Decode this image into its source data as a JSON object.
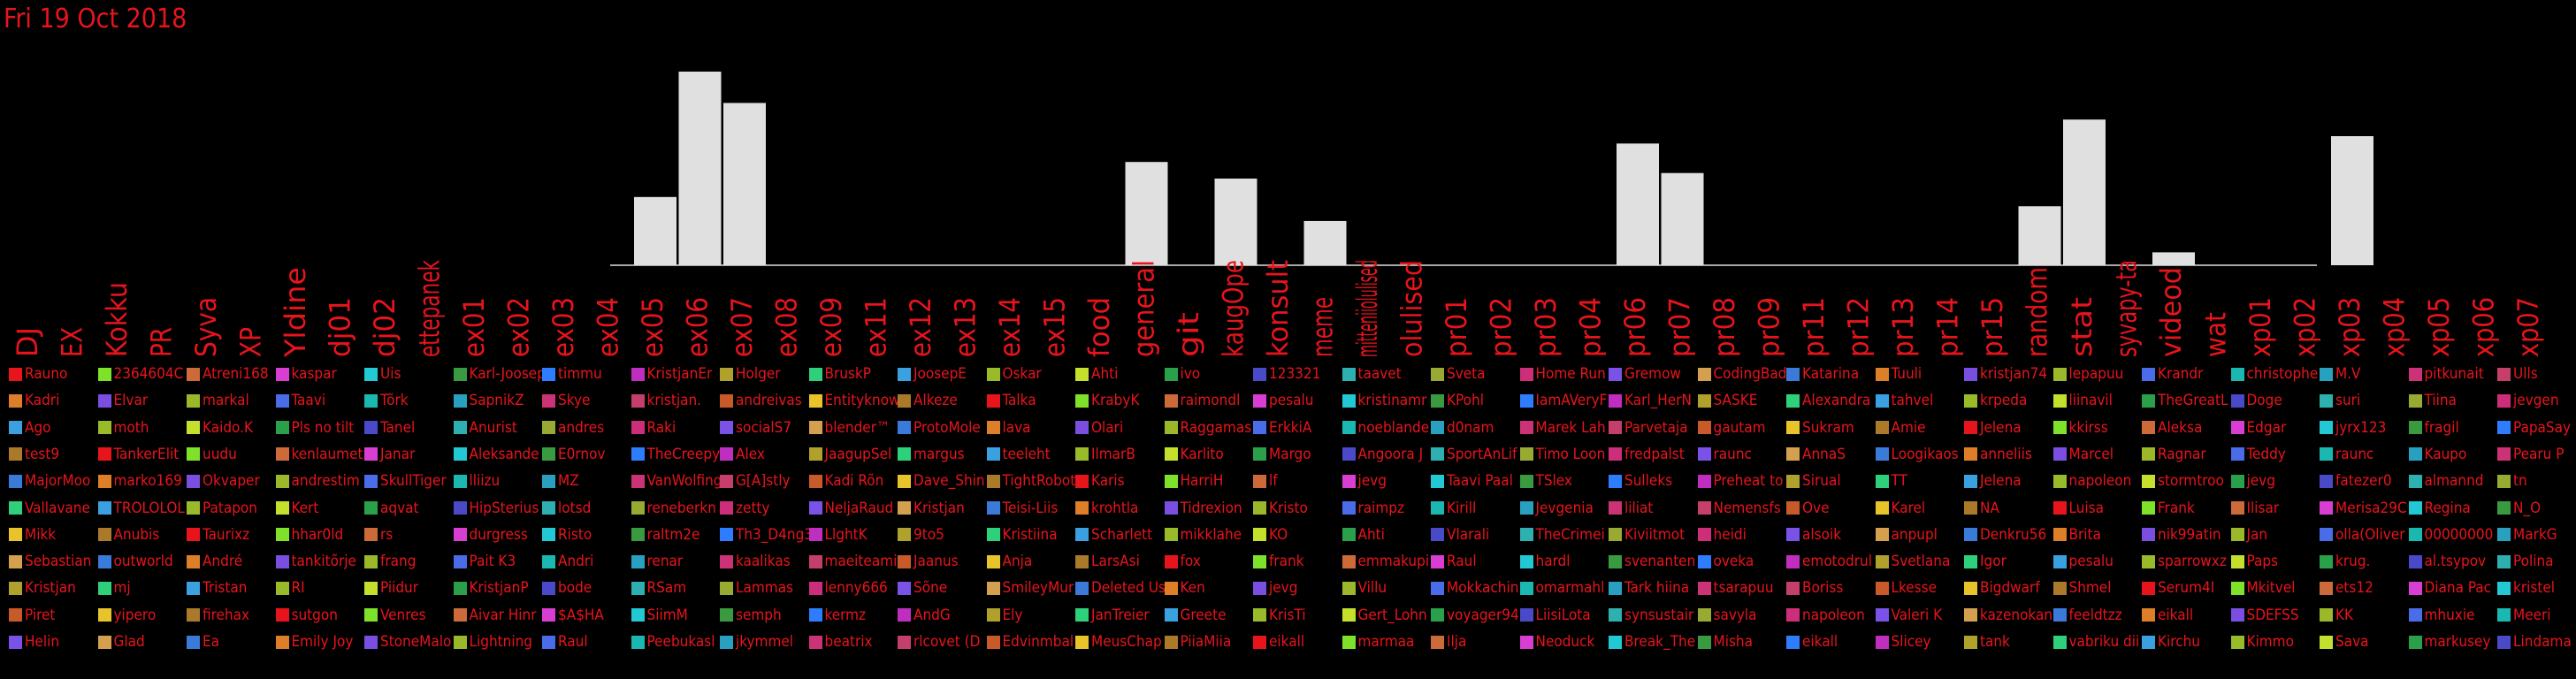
{
  "title": "Fri 19 Oct 2018",
  "chart_data": {
    "type": "bar",
    "title": "Fri 19 Oct 2018",
    "categories": [
      "DJ",
      "EX",
      "Kokku",
      "PR",
      "Syva",
      "XP",
      "Yldine",
      "dj01",
      "dj02",
      "ettepanek",
      "ex01",
      "ex02",
      "ex03",
      "ex04",
      "ex05",
      "ex06",
      "ex07",
      "ex08",
      "ex09",
      "ex11",
      "ex12",
      "ex13",
      "ex14",
      "ex15",
      "food",
      "general",
      "git",
      "kaugOpe",
      "konsult",
      "meme",
      "mitteniiolulised",
      "olulised",
      "pr01",
      "pr02",
      "pr03",
      "pr04",
      "pr06",
      "pr07",
      "pr08",
      "pr09",
      "pr11",
      "pr12",
      "pr13",
      "pr14",
      "pr15",
      "random",
      "stat",
      "syvapy-ta",
      "videod",
      "wat",
      "xp01",
      "xp02",
      "xp03",
      "xp04",
      "xp05",
      "xp06",
      "xp07"
    ],
    "values": [
      0,
      0,
      0,
      0,
      0,
      0,
      0,
      0,
      0,
      0,
      0,
      0,
      0,
      0,
      37,
      105,
      88,
      0,
      0,
      0,
      0,
      0,
      0,
      0,
      0,
      56,
      0,
      47,
      0,
      24,
      0,
      0,
      0,
      0,
      0,
      0,
      66,
      50,
      0,
      0,
      0,
      0,
      0,
      0,
      0,
      32,
      79,
      0,
      7,
      0,
      0,
      0,
      70,
      0,
      0,
      0,
      0
    ],
    "ylim": [
      0,
      115
    ],
    "grid": false,
    "legend": "bottom"
  },
  "legend": {
    "colors": [
      "#e8141c",
      "#d93ed3",
      "#2f7dff",
      "#2fd07b",
      "#c4e02c",
      "#2fb0b0",
      "#7a52e8",
      "#dd7e28",
      "#4a6ce8",
      "#cc3377",
      "#e8c42a",
      "#7ee22a",
      "#22c8d4",
      "#c02ec0",
      "#3aa0e0",
      "#2aa04a",
      "#99aa33",
      "#d4a050",
      "#7a4ee0",
      "#1ab8b0",
      "#c4406a",
      "#aa7a2a",
      "#cc6a3a",
      "#3a9a40",
      "#b0a02c",
      "#99bb2a",
      "#4a4ac8",
      "#cc2e7a",
      "#3a7ad8",
      "#9ab82a",
      "#2aa0c0",
      "#c85a2a"
    ],
    "rows": [
      [
        "Rauno",
        "2364604C",
        "Atreni168",
        "kaspar",
        "Uis",
        "Karl-Joosep",
        "timmu",
        "KristjanEr",
        "Holger",
        "BruskP",
        "JoosepE",
        "Oskar",
        "Ahti",
        "ivo",
        "123321",
        "taavet",
        "Sveta",
        "Home Run",
        "Gremow",
        "CodingBad",
        "Katarina",
        "Tuuli",
        "kristjan74",
        "lepapuu",
        "Krandr",
        "christophe",
        "M.V",
        "pitkunait",
        "Ulls"
      ],
      [
        "Kadri",
        "Elvar",
        "markal",
        "Taavi",
        "Tõrk",
        "SapnikZ",
        "Skye",
        "kristjan.",
        "andreivas",
        "Entityknow",
        "Alkeze",
        "Talka",
        "KrabyK",
        "raimondl",
        "pesalu",
        "kristinamr",
        "KPohl",
        "IamAVeryF",
        "Karl_HerN",
        "SASKE",
        "Alexandra",
        "tahvel",
        "krpeda",
        "liinavil",
        "TheGreatL",
        "Doge",
        "suri",
        "Tiina",
        "jevgen"
      ],
      [
        "Ago",
        "moth",
        "Kaido.K",
        "Pls no tilt",
        "Tanel",
        "Anurist",
        "andres",
        "Raki",
        "socialS7",
        "blender™",
        "ProtoMole",
        "lava",
        "Olari",
        "Raggamas",
        "ErkkiA",
        "noeblande",
        "d0nam",
        "Marek Lah",
        "Parvetaja",
        "gautam",
        "Sukram",
        "Amie",
        "Jelena",
        "kkirss",
        "Aleksa",
        "Edgar",
        "jyrx123",
        "fragil",
        "PapaSay"
      ],
      [
        "test9",
        "TankerElit",
        "uudu",
        "kenlaumet",
        "Janar",
        "Aleksande",
        "E0rnov",
        "TheCreepy",
        "Alex",
        "JaagupSel",
        "margus",
        "teeleht",
        "IlmarB",
        "Karlito",
        "Margo",
        "Angoora J",
        "SportAnLif",
        "Timo Loon",
        "fredpalst",
        "raunc",
        "AnnaS",
        "Loogikaos",
        "anneliis",
        "Marcel",
        "Ragnar",
        "Teddy",
        "raunc",
        "Kaupo",
        "Pearu P"
      ],
      [
        "MajorMoo",
        "marko169",
        "Okvaper",
        "andrestim",
        "SkullTiger",
        "lliizu",
        "MZ",
        "VanWolfing",
        "G[A]stly",
        "Kadi Rõn",
        "Dave_Shin",
        "TightRobot",
        "Karis",
        "HarriH",
        "lf",
        "jevg",
        "Taavi Paal",
        "TSlex",
        "Sulleks",
        "Preheat to",
        "Sirual",
        "TT",
        "Jelena",
        "napoleon",
        "stormtroo",
        "jevg",
        "fatezer0",
        "almannd",
        "tn"
      ],
      [
        "Vallavane",
        "TROLOLOL",
        "Patapon",
        "Kert",
        "aqvat",
        "HipSterius",
        "lotsd",
        "reneberkn",
        "zetty",
        "NeljaRaud",
        "Kristjan",
        "Teisi-Liis",
        "krohtla",
        "Tidrexion",
        "Kristo",
        "raimpz",
        "Kirill",
        "Jevgenia",
        "liliat",
        "Nemensfs",
        "Ove",
        "Karel",
        "NA",
        "Luisa",
        "Frank",
        "Ilisar",
        "Merisa29C",
        "Regina",
        "N_O"
      ],
      [
        "Mikk",
        "Anubis",
        "Taurixz",
        "hhar0ld",
        "rs",
        "durgress",
        "Risto",
        "raltm2e",
        "Th3_D4ng3",
        "LlghtK",
        "9to5",
        "Kristiina",
        "Scharlett",
        "mikklahe",
        "KO",
        "Ahti",
        "Vlarali",
        "TheCrimei",
        "Kiviitmot",
        "heidi",
        "alsoik",
        "anpupl",
        "Denkru56",
        "Brita",
        "nik99atin",
        "Jan",
        "olla(Oliver",
        "00000000",
        "MarkG"
      ],
      [
        "Sebastian",
        "outworld",
        "André",
        "tankitõrje",
        "frang",
        "Pait K3",
        "Andri",
        "renar",
        "kaalikas",
        "maeiteami",
        "Jaanus",
        "Anja",
        "LarsAsi",
        "fox",
        "frank",
        "emmakupi",
        "Raul",
        "hardl",
        "svenanten",
        "oveka",
        "emotodrul",
        "Svetlana",
        "Igor",
        "pesalu",
        "sparrowxz",
        "Paps",
        "krug.",
        "al.tsypov",
        "Polina"
      ],
      [
        "Kristjan",
        "mj",
        "Tristan",
        "RI",
        "Piidur",
        "KristjanP",
        "bode",
        "RSam",
        "Lammas",
        "lenny666",
        "Sõne",
        "SmileyMur",
        "Deleted Us",
        "Ken",
        "jevg",
        "Villu",
        "Mokkachin",
        "omarmahl",
        "Tark hiina",
        "tsarapuu",
        "Boriss",
        "Lkesse",
        "Bigdwarf",
        "Shmel",
        "Serum4I",
        "Mkitvel",
        "ets12",
        "Diana Pac",
        "kristel"
      ],
      [
        "Piret",
        "yipero",
        "firehax",
        "sutgon",
        "Venres",
        "Aivar Hinr",
        "$A$HA",
        "SiimM",
        "semph",
        "kermz",
        "AndG",
        "Ely",
        "JanTreier",
        "Greete",
        "KrisTi",
        "Gert_Lohn",
        "voyager94",
        "LiisiLota",
        "synsustair",
        "savyla",
        "napoleon",
        "Valeri K",
        "kazenokan",
        "feeldtzz",
        "eikall",
        "SDEFSS",
        "KK",
        "mhuxie",
        "Meeri"
      ],
      [
        "Helin",
        "Glad",
        "Ea",
        "Emily Joy",
        "StoneMalo",
        "Lightning",
        "Raul",
        "Peebukasl",
        "jkymmel",
        "beatrix",
        "rlcovet (D",
        "Edvinmbal",
        "MeusChap",
        "PiiaMiia",
        "eikall",
        "marmaa",
        "Ilja",
        "Neoduck",
        "Break_The",
        "Misha",
        "eikall",
        "Slicey",
        "tank",
        "vabriku dii",
        "Kirchu",
        "Kimmo",
        "Sava",
        "markusey",
        "Lindama"
      ]
    ]
  }
}
